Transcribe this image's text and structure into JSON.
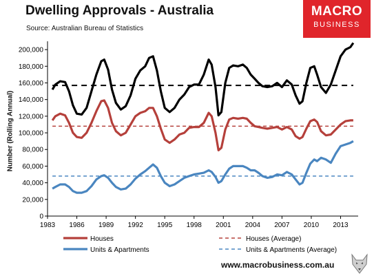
{
  "header": {
    "title": "Dwelling Approvals - Australia",
    "source": "Source: Australian Bureau of Statistics"
  },
  "brand": {
    "line1": "MACRO",
    "line2": "BUSINESS",
    "color": "#e0252b"
  },
  "footer": {
    "url": "www.macrobusiness.com.au"
  },
  "colors": {
    "total": "#000000",
    "houses": "#b5403b",
    "units": "#4a86c0"
  },
  "chart_data": {
    "type": "line",
    "title": "Dwelling Approvals - Australia",
    "xlabel": "",
    "ylabel": "Number (Rolling Annual)",
    "xlim": [
      1983,
      2014.8
    ],
    "ylim": [
      0,
      210000
    ],
    "x_ticks": [
      "1983",
      "1986",
      "1989",
      "1992",
      "1995",
      "1998",
      "2001",
      "2004",
      "2007",
      "2010",
      "2013"
    ],
    "y_ticks": [
      "0",
      "20,000",
      "40,000",
      "60,000",
      "80,000",
      "100,000",
      "120,000",
      "140,000",
      "160,000",
      "180,000",
      "200,000"
    ],
    "grid": false,
    "legend_position": "bottom",
    "series": [
      {
        "name": "",
        "style": "solid",
        "color": "#000000",
        "points": [
          [
            1983.5,
            152000
          ],
          [
            1983.8,
            158000
          ],
          [
            1984.3,
            162000
          ],
          [
            1984.8,
            161000
          ],
          [
            1985.2,
            150000
          ],
          [
            1985.6,
            133000
          ],
          [
            1986.0,
            123000
          ],
          [
            1986.5,
            122000
          ],
          [
            1987.0,
            130000
          ],
          [
            1987.5,
            150000
          ],
          [
            1988.0,
            170000
          ],
          [
            1988.5,
            186000
          ],
          [
            1988.8,
            188000
          ],
          [
            1989.2,
            176000
          ],
          [
            1989.6,
            152000
          ],
          [
            1990.0,
            136000
          ],
          [
            1990.5,
            128000
          ],
          [
            1991.0,
            132000
          ],
          [
            1991.5,
            145000
          ],
          [
            1992.0,
            165000
          ],
          [
            1992.5,
            175000
          ],
          [
            1993.0,
            180000
          ],
          [
            1993.4,
            190000
          ],
          [
            1993.8,
            192000
          ],
          [
            1994.2,
            175000
          ],
          [
            1994.6,
            150000
          ],
          [
            1995.0,
            130000
          ],
          [
            1995.5,
            125000
          ],
          [
            1996.0,
            130000
          ],
          [
            1996.5,
            140000
          ],
          [
            1997.0,
            146000
          ],
          [
            1997.5,
            155000
          ],
          [
            1998.0,
            158000
          ],
          [
            1998.5,
            158000
          ],
          [
            1999.0,
            170000
          ],
          [
            1999.5,
            188000
          ],
          [
            1999.8,
            182000
          ],
          [
            2000.2,
            155000
          ],
          [
            2000.5,
            121000
          ],
          [
            2000.8,
            125000
          ],
          [
            2001.2,
            160000
          ],
          [
            2001.6,
            178000
          ],
          [
            2002.0,
            181000
          ],
          [
            2002.5,
            180000
          ],
          [
            2003.0,
            182000
          ],
          [
            2003.4,
            178000
          ],
          [
            2003.8,
            170000
          ],
          [
            2004.2,
            165000
          ],
          [
            2004.6,
            160000
          ],
          [
            2005.0,
            156000
          ],
          [
            2005.5,
            155000
          ],
          [
            2006.0,
            156000
          ],
          [
            2006.5,
            160000
          ],
          [
            2007.0,
            155000
          ],
          [
            2007.5,
            163000
          ],
          [
            2008.0,
            158000
          ],
          [
            2008.4,
            145000
          ],
          [
            2008.8,
            135000
          ],
          [
            2009.1,
            138000
          ],
          [
            2009.5,
            160000
          ],
          [
            2009.9,
            178000
          ],
          [
            2010.3,
            180000
          ],
          [
            2010.6,
            170000
          ],
          [
            2011.0,
            155000
          ],
          [
            2011.5,
            148000
          ],
          [
            2012.0,
            158000
          ],
          [
            2012.5,
            175000
          ],
          [
            2013.0,
            192000
          ],
          [
            2013.5,
            200000
          ],
          [
            2014.0,
            203000
          ],
          [
            2014.3,
            208000
          ]
        ]
      },
      {
        "name": "",
        "style": "dashed",
        "color": "#000000",
        "points": [
          [
            1983.5,
            157000
          ],
          [
            2014.3,
            157000
          ]
        ]
      },
      {
        "name": "Houses",
        "style": "solid",
        "color": "#b5403b",
        "points": [
          [
            1983.5,
            115000
          ],
          [
            1983.8,
            120000
          ],
          [
            1984.3,
            123000
          ],
          [
            1984.8,
            121000
          ],
          [
            1985.2,
            112000
          ],
          [
            1985.6,
            100000
          ],
          [
            1986.0,
            95000
          ],
          [
            1986.5,
            94000
          ],
          [
            1987.0,
            100000
          ],
          [
            1987.5,
            112000
          ],
          [
            1988.0,
            126000
          ],
          [
            1988.5,
            138000
          ],
          [
            1988.8,
            139000
          ],
          [
            1989.2,
            130000
          ],
          [
            1989.6,
            112000
          ],
          [
            1990.0,
            102000
          ],
          [
            1990.5,
            97000
          ],
          [
            1991.0,
            100000
          ],
          [
            1991.5,
            110000
          ],
          [
            1992.0,
            120000
          ],
          [
            1992.5,
            124000
          ],
          [
            1993.0,
            126000
          ],
          [
            1993.4,
            130000
          ],
          [
            1993.8,
            130000
          ],
          [
            1994.2,
            120000
          ],
          [
            1994.6,
            105000
          ],
          [
            1995.0,
            92000
          ],
          [
            1995.5,
            88000
          ],
          [
            1996.0,
            92000
          ],
          [
            1996.5,
            98000
          ],
          [
            1997.0,
            100000
          ],
          [
            1997.5,
            106000
          ],
          [
            1998.0,
            107000
          ],
          [
            1998.5,
            107000
          ],
          [
            1999.0,
            112000
          ],
          [
            1999.5,
            124000
          ],
          [
            1999.8,
            120000
          ],
          [
            2000.2,
            100000
          ],
          [
            2000.5,
            79000
          ],
          [
            2000.8,
            82000
          ],
          [
            2001.2,
            104000
          ],
          [
            2001.6,
            116000
          ],
          [
            2002.0,
            118000
          ],
          [
            2002.5,
            117000
          ],
          [
            2003.0,
            118000
          ],
          [
            2003.4,
            117000
          ],
          [
            2003.8,
            112000
          ],
          [
            2004.2,
            108000
          ],
          [
            2004.6,
            107000
          ],
          [
            2005.0,
            106000
          ],
          [
            2005.5,
            105000
          ],
          [
            2006.0,
            106000
          ],
          [
            2006.5,
            107000
          ],
          [
            2007.0,
            104000
          ],
          [
            2007.5,
            107000
          ],
          [
            2008.0,
            104000
          ],
          [
            2008.4,
            96000
          ],
          [
            2008.8,
            93000
          ],
          [
            2009.1,
            95000
          ],
          [
            2009.5,
            105000
          ],
          [
            2009.9,
            114000
          ],
          [
            2010.3,
            116000
          ],
          [
            2010.6,
            113000
          ],
          [
            2011.0,
            102000
          ],
          [
            2011.5,
            97000
          ],
          [
            2012.0,
            98000
          ],
          [
            2012.5,
            104000
          ],
          [
            2013.0,
            110000
          ],
          [
            2013.5,
            114000
          ],
          [
            2014.0,
            115000
          ],
          [
            2014.3,
            115000
          ]
        ]
      },
      {
        "name": "Houses (Average)",
        "style": "dashed",
        "color": "#b5403b",
        "points": [
          [
            1983.5,
            108000
          ],
          [
            2014.3,
            108000
          ]
        ]
      },
      {
        "name": "Units & Apartments",
        "style": "solid",
        "color": "#4a86c0",
        "points": [
          [
            1983.5,
            33000
          ],
          [
            1983.8,
            35000
          ],
          [
            1984.3,
            38000
          ],
          [
            1984.8,
            38000
          ],
          [
            1985.2,
            35000
          ],
          [
            1985.6,
            30000
          ],
          [
            1986.0,
            28000
          ],
          [
            1986.5,
            28000
          ],
          [
            1987.0,
            30000
          ],
          [
            1987.5,
            36000
          ],
          [
            1988.0,
            44000
          ],
          [
            1988.5,
            48000
          ],
          [
            1988.8,
            49000
          ],
          [
            1989.2,
            46000
          ],
          [
            1989.6,
            40000
          ],
          [
            1990.0,
            35000
          ],
          [
            1990.5,
            32000
          ],
          [
            1991.0,
            33000
          ],
          [
            1991.5,
            38000
          ],
          [
            1992.0,
            45000
          ],
          [
            1992.5,
            50000
          ],
          [
            1993.0,
            54000
          ],
          [
            1993.4,
            58000
          ],
          [
            1993.8,
            62000
          ],
          [
            1994.2,
            58000
          ],
          [
            1994.6,
            48000
          ],
          [
            1995.0,
            40000
          ],
          [
            1995.5,
            36000
          ],
          [
            1996.0,
            38000
          ],
          [
            1996.5,
            42000
          ],
          [
            1997.0,
            46000
          ],
          [
            1997.5,
            48000
          ],
          [
            1998.0,
            50000
          ],
          [
            1998.5,
            51000
          ],
          [
            1999.0,
            52000
          ],
          [
            1999.5,
            55000
          ],
          [
            1999.8,
            53000
          ],
          [
            2000.2,
            47000
          ],
          [
            2000.5,
            40000
          ],
          [
            2000.8,
            42000
          ],
          [
            2001.2,
            50000
          ],
          [
            2001.6,
            57000
          ],
          [
            2002.0,
            60000
          ],
          [
            2002.5,
            60000
          ],
          [
            2003.0,
            60000
          ],
          [
            2003.4,
            58000
          ],
          [
            2003.8,
            55000
          ],
          [
            2004.2,
            55000
          ],
          [
            2004.6,
            52000
          ],
          [
            2005.0,
            48000
          ],
          [
            2005.5,
            46000
          ],
          [
            2006.0,
            47000
          ],
          [
            2006.5,
            50000
          ],
          [
            2007.0,
            49000
          ],
          [
            2007.5,
            53000
          ],
          [
            2008.0,
            50000
          ],
          [
            2008.4,
            44000
          ],
          [
            2008.8,
            38000
          ],
          [
            2009.1,
            40000
          ],
          [
            2009.5,
            52000
          ],
          [
            2009.9,
            63000
          ],
          [
            2010.3,
            68000
          ],
          [
            2010.6,
            66000
          ],
          [
            2011.0,
            70000
          ],
          [
            2011.5,
            68000
          ],
          [
            2012.0,
            64000
          ],
          [
            2012.5,
            75000
          ],
          [
            2013.0,
            84000
          ],
          [
            2013.5,
            86000
          ],
          [
            2014.0,
            88000
          ],
          [
            2014.3,
            90000
          ]
        ]
      },
      {
        "name": "Units & Apartments (Average)",
        "style": "dashed",
        "color": "#4a86c0",
        "points": [
          [
            1983.5,
            48000
          ],
          [
            2014.3,
            48000
          ]
        ]
      }
    ]
  }
}
